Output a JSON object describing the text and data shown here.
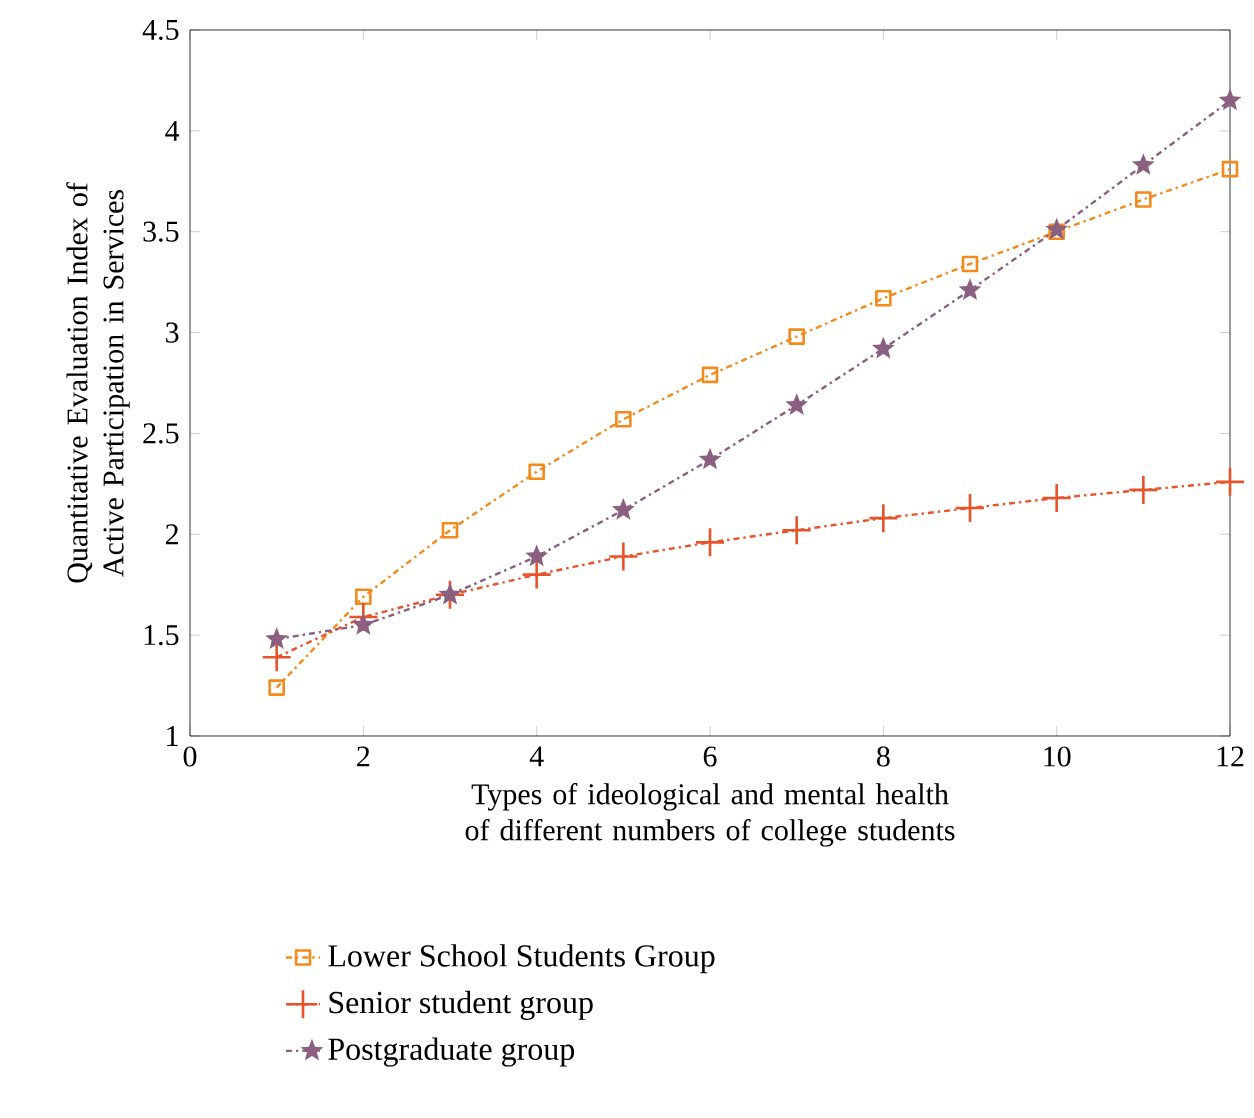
{
  "chart_data": {
    "type": "line",
    "xlabel": "Types of ideological and mental health of different numbers of college students",
    "ylabel": "Quantitative Evaluation Index of Active Participation in Services",
    "x": [
      1,
      2,
      3,
      4,
      5,
      6,
      7,
      8,
      9,
      10,
      11,
      12
    ],
    "series": [
      {
        "name": "Lower School Students Group",
        "color": "#f28a1c",
        "marker": "square",
        "values": [
          1.24,
          1.69,
          2.02,
          2.31,
          2.57,
          2.79,
          2.98,
          3.17,
          3.34,
          3.5,
          3.66,
          3.81
        ]
      },
      {
        "name": "Senior student group",
        "color": "#e8532a",
        "marker": "cross",
        "values": [
          1.39,
          1.59,
          1.7,
          1.8,
          1.89,
          1.96,
          2.02,
          2.08,
          2.13,
          2.18,
          2.22,
          2.26
        ]
      },
      {
        "name": "Postgraduate group",
        "color": "#8b5f80",
        "marker": "star",
        "values": [
          1.48,
          1.55,
          1.7,
          1.89,
          2.12,
          2.37,
          2.64,
          2.92,
          3.21,
          3.51,
          3.83,
          4.15
        ]
      }
    ],
    "xlim": [
      0,
      12
    ],
    "xticks": [
      0,
      2,
      4,
      6,
      8,
      10,
      12
    ],
    "ylim": [
      1,
      4.5
    ],
    "yticks": [
      1,
      1.5,
      2,
      2.5,
      3,
      3.5,
      4,
      4.5
    ],
    "line_style": "dashdot",
    "legend": "bottom",
    "grid": false
  }
}
